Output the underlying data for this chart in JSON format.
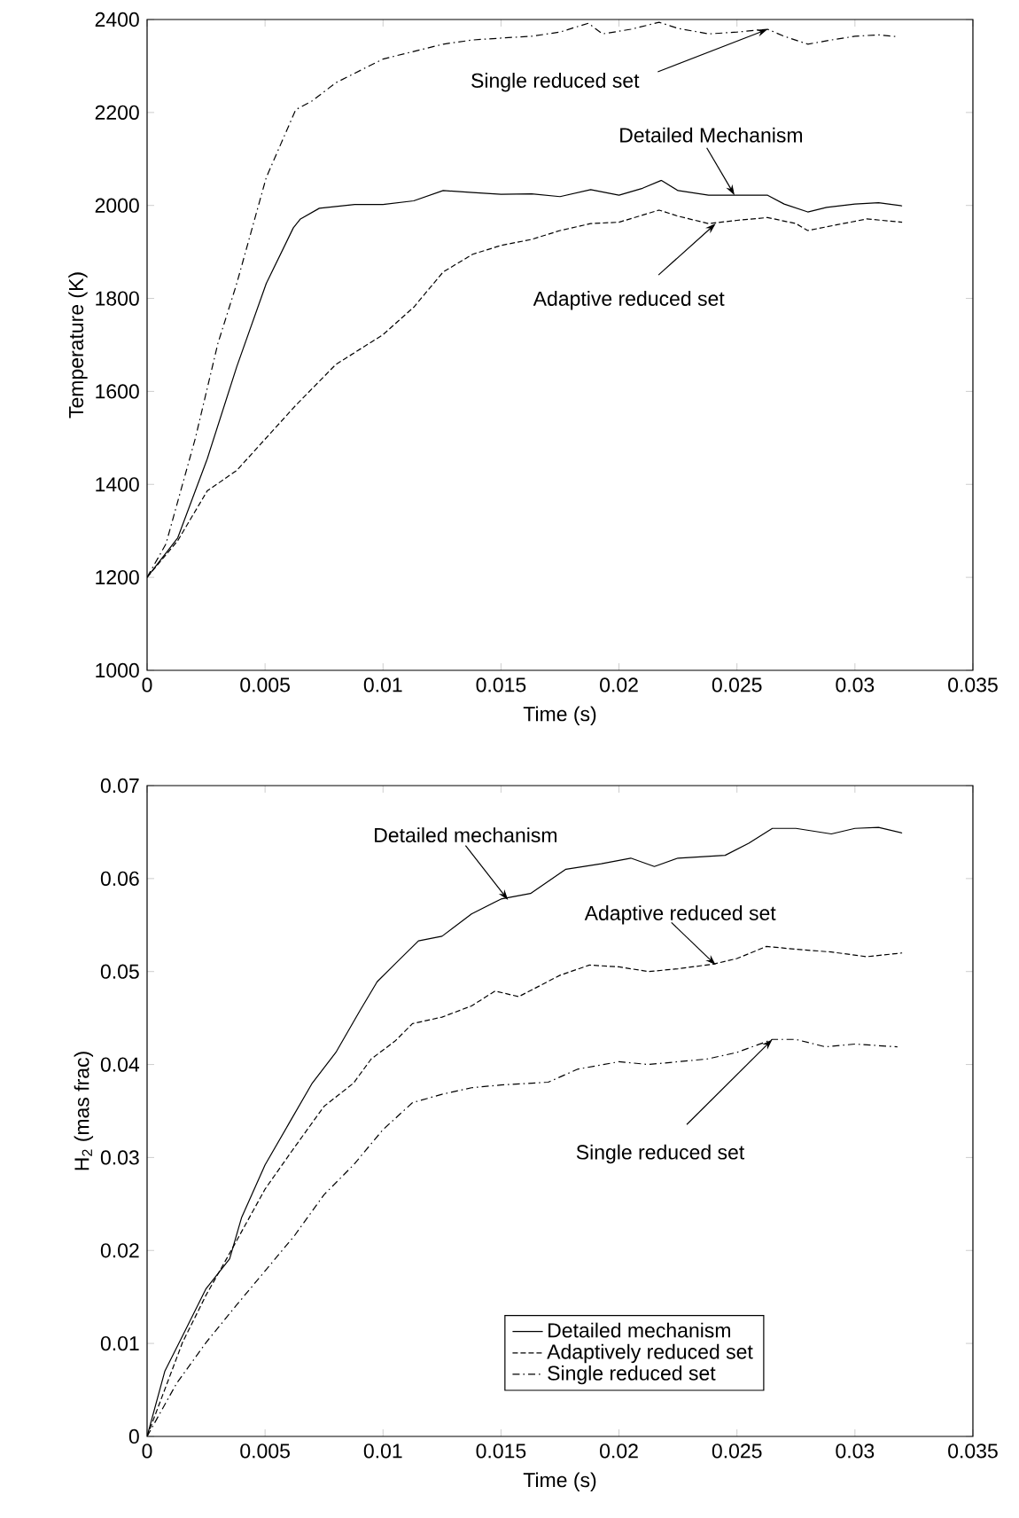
{
  "chart_data": [
    {
      "type": "line",
      "xlabel": "Time (s)",
      "ylabel": "Temperature (K)",
      "xlim": [
        0,
        0.035
      ],
      "ylim": [
        1000,
        2400
      ],
      "xticks": [
        0,
        0.005,
        0.01,
        0.015,
        0.02,
        0.025,
        0.03,
        0.035
      ],
      "yticks": [
        1000,
        1200,
        1400,
        1600,
        1800,
        2000,
        2200,
        2400
      ],
      "grid": false,
      "legend": false,
      "marker": "none",
      "series": [
        {
          "color": "#000000",
          "line_style": "solid",
          "x": [
            0,
            0.0013,
            0.00255,
            0.0038,
            0.00505,
            0.0062,
            0.0065,
            0.0073,
            0.0088,
            0.01,
            0.0113,
            0.01255,
            0.0138,
            0.015,
            0.0163,
            0.0175,
            0.0188,
            0.02,
            0.021,
            0.0218,
            0.0225,
            0.0238,
            0.025,
            0.0263,
            0.027,
            0.028,
            0.0288,
            0.03,
            0.031,
            0.032
          ],
          "values": [
            1200,
            1285,
            1455,
            1653,
            1832,
            1952,
            1971,
            1994,
            2002,
            2002,
            2010,
            2032,
            2028,
            2024,
            2025,
            2019,
            2034,
            2022,
            2037,
            2054,
            2032,
            2022,
            2022,
            2022,
            2003,
            1986,
            1996,
            2003,
            2006,
            1999
          ]
        },
        {
          "color": "#000000",
          "line_style": "dashed",
          "x": [
            0,
            0.0013,
            0.00255,
            0.0038,
            0.00505,
            0.0063,
            0.008,
            0.01,
            0.0113,
            0.01255,
            0.0138,
            0.015,
            0.0163,
            0.0175,
            0.0188,
            0.02,
            0.0217,
            0.0225,
            0.0238,
            0.025,
            0.0263,
            0.0275,
            0.028,
            0.0293,
            0.0305,
            0.032
          ],
          "values": [
            1200,
            1279,
            1386,
            1430,
            1500,
            1570,
            1658,
            1722,
            1781,
            1857,
            1895,
            1914,
            1927,
            1946,
            1961,
            1964,
            1990,
            1977,
            1961,
            1968,
            1974,
            1961,
            1946,
            1959,
            1971,
            1964
          ]
        },
        {
          "color": "#000000",
          "line_style": "dashdot",
          "x": [
            0,
            0.0008,
            0.00205,
            0.003,
            0.0038,
            0.00505,
            0.0063,
            0.007,
            0.008,
            0.01,
            0.01255,
            0.0138,
            0.015,
            0.0163,
            0.0175,
            0.0187,
            0.0193,
            0.0205,
            0.0217,
            0.0225,
            0.0238,
            0.025,
            0.0263,
            0.027,
            0.028,
            0.029,
            0.03,
            0.031,
            0.0318
          ],
          "values": [
            1200,
            1272,
            1500,
            1703,
            1832,
            2060,
            2206,
            2225,
            2264,
            2315,
            2347,
            2356,
            2360,
            2364,
            2373,
            2392,
            2369,
            2379,
            2394,
            2381,
            2369,
            2373,
            2379,
            2364,
            2347,
            2356,
            2364,
            2367,
            2363
          ]
        }
      ],
      "annotations": [
        {
          "text": "Single reduced set",
          "x": 0.0263,
          "y": 2379
        },
        {
          "text": "Detailed Mechanism",
          "x": 0.0249,
          "y": 2022
        },
        {
          "text": "Adaptive reduced set",
          "x": 0.0241,
          "y": 1961
        }
      ]
    },
    {
      "type": "line",
      "xlabel": "Time (s)",
      "ylabel": "H$_{2}$ (mas frac)",
      "xlim": [
        0,
        0.035
      ],
      "ylim": [
        0,
        0.07
      ],
      "xticks": [
        0,
        0.005,
        0.01,
        0.015,
        0.02,
        0.025,
        0.03,
        0.035
      ],
      "yticks": [
        0,
        0.01,
        0.02,
        0.03,
        0.04,
        0.05,
        0.06,
        0.07
      ],
      "grid": false,
      "legend": "bottom",
      "marker": "none",
      "series": [
        {
          "name": "Detailed mechanism",
          "color": "#000000",
          "line_style": "solid",
          "x": [
            0,
            0.00075,
            0.0015,
            0.0025,
            0.0035,
            0.004,
            0.005,
            0.006,
            0.007,
            0.008,
            0.009,
            0.00975,
            0.0105,
            0.0115,
            0.0125,
            0.01375,
            0.015,
            0.01625,
            0.01775,
            0.01925,
            0.0205,
            0.0215,
            0.0225,
            0.0245,
            0.0255,
            0.0265,
            0.0275,
            0.029,
            0.03,
            0.031,
            0.032
          ],
          "values": [
            0,
            0.007,
            0.0108,
            0.0159,
            0.0191,
            0.0235,
            0.0292,
            0.0336,
            0.038,
            0.0413,
            0.0457,
            0.0489,
            0.0508,
            0.0533,
            0.0538,
            0.0562,
            0.0578,
            0.0584,
            0.061,
            0.0616,
            0.0622,
            0.0613,
            0.0622,
            0.0625,
            0.0638,
            0.0654,
            0.0654,
            0.0648,
            0.0654,
            0.0655,
            0.0649
          ]
        },
        {
          "name": "Adaptively reduced set",
          "color": "#000000",
          "line_style": "dashed",
          "x": [
            0,
            0.0015,
            0.0025,
            0.0035,
            0.005,
            0.00625,
            0.0075,
            0.00875,
            0.0095,
            0.0105,
            0.01125,
            0.0125,
            0.01375,
            0.01475,
            0.01575,
            0.0175,
            0.01875,
            0.02,
            0.02125,
            0.0225,
            0.024,
            0.025,
            0.02625,
            0.0275,
            0.029,
            0.0305,
            0.032
          ],
          "values": [
            0,
            0.0101,
            0.0152,
            0.0197,
            0.0266,
            0.0311,
            0.0355,
            0.038,
            0.0406,
            0.0425,
            0.0444,
            0.0451,
            0.0463,
            0.0479,
            0.0473,
            0.0496,
            0.0507,
            0.0505,
            0.05,
            0.0503,
            0.0508,
            0.0514,
            0.0527,
            0.0524,
            0.0521,
            0.0516,
            0.052
          ]
        },
        {
          "name": "Single reduced set",
          "color": "#000000",
          "line_style": "dashdot",
          "x": [
            0,
            0.00125,
            0.0025,
            0.00375,
            0.005,
            0.00625,
            0.0075,
            0.00875,
            0.01,
            0.01125,
            0.0125,
            0.01375,
            0.015,
            0.017,
            0.01825,
            0.02,
            0.02125,
            0.0225,
            0.02375,
            0.025,
            0.0265,
            0.0275,
            0.02875,
            0.03,
            0.0318
          ],
          "values": [
            0,
            0.0057,
            0.0101,
            0.014,
            0.0178,
            0.0216,
            0.026,
            0.0292,
            0.033,
            0.0359,
            0.0368,
            0.0375,
            0.0378,
            0.0381,
            0.0395,
            0.0403,
            0.04,
            0.0403,
            0.0406,
            0.0413,
            0.0427,
            0.0427,
            0.0419,
            0.0422,
            0.0419
          ]
        }
      ],
      "annotations": [
        {
          "text": "Detailed mechanism",
          "x": 0.0153,
          "y": 0.0577
        },
        {
          "text": "Adaptive reduced set",
          "x": 0.0241,
          "y": 0.0507
        },
        {
          "text": "Single reduced set",
          "x": 0.0265,
          "y": 0.0427
        }
      ]
    }
  ]
}
